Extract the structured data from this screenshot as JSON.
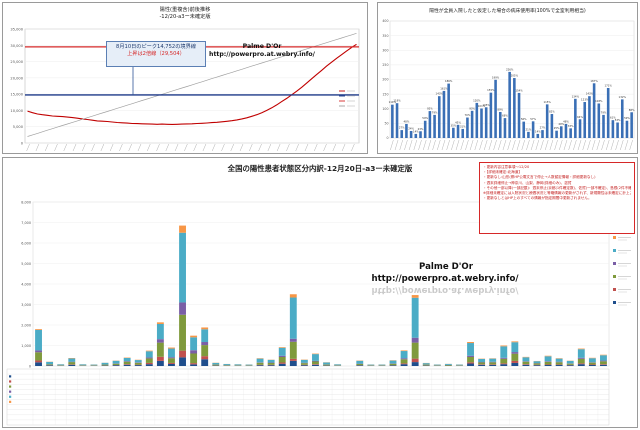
{
  "watermark": {
    "name": "Palme D'Or",
    "url": "http://powerpro.at.webry.info/"
  },
  "panel_a": {
    "title_line1": "陽性(重複含)前後推移",
    "title_line2": "-12/20-a3ー未確定版",
    "annotation_line1": "8月10日のピーク14,752の境界線",
    "annotation_line2": "上昇は2倍線（29,504）"
  },
  "panel_b": {
    "title": "陽性が全員入院したと仮定した場合の病床使用率(100%で全室利用相当)"
  },
  "panel_c": {
    "title": "全国の陽性患者状態区分内訳-12月20日-a3ー未確定版",
    "notes": [
      "・更新内容注意事項～12/20",
      "・【詳細未確定:北海道】",
      "・更新なし:山形(県HP公電文言で停止→人数暫定情報・詳細更新なし)",
      "・週末詳細停止→神奈川、山梨、静岡(詳細のみ)、滋賀",
      "・その他一部以降(一部記載)：週末停止(京都(1件確定数)、佐賀(一部不確定)、島根(2件不確定)",
      "※詳細未確定には入院状況と療養状況と等略情報の更新がされず、新規陽性は未確定に計上されます。",
      "・更新なしとはHP上のすべての情報が指定期間中更新されません。"
    ]
  },
  "chart_data": [
    {
      "type": "line",
      "title": "陽性(重複含)前後推移 -12/20-a3ー未確定版",
      "ylim": [
        0,
        35000
      ],
      "yticks": [
        0,
        5000,
        10000,
        15000,
        20000,
        25000,
        30000,
        35000
      ],
      "reference_lines": [
        {
          "name": "8月10日のピーク14,752の境界線",
          "value": 14752,
          "color": "#1f3b8a"
        },
        {
          "name": "上昇は2倍線（29,504）",
          "value": 29504,
          "color": "#d62828"
        }
      ],
      "series": [
        {
          "name": "",
          "color": "#c00000",
          "values": [
            9800,
            9300,
            8900,
            8700,
            8500,
            8300,
            8200,
            8100,
            7950,
            7800,
            7600,
            7400,
            7200,
            7000,
            6800,
            6700,
            6600,
            6450,
            6300,
            6200,
            6100,
            6000,
            5950,
            5900,
            5850,
            5800,
            5750,
            5800,
            5750,
            5700,
            5750,
            5800,
            5850,
            5900,
            6000,
            6050,
            6150,
            6250,
            6350,
            6500,
            6650,
            6850,
            7100,
            7400,
            7750,
            8200,
            8700,
            9300,
            10000,
            10800,
            11700,
            12700,
            13700,
            14800,
            15900,
            17100,
            18400,
            19700,
            21000,
            22300,
            23600,
            24800,
            26000,
            27100,
            28200,
            29300,
            30300
          ]
        },
        {
          "name": "",
          "color": "#a0a0a0",
          "values": [
            2000,
            2480,
            2960,
            3440,
            3920,
            4400,
            4880,
            5360,
            5840,
            6320,
            6800,
            7280,
            7760,
            8240,
            8720,
            9200,
            9680,
            10160,
            10640,
            11120,
            11600,
            12080,
            12560,
            13040,
            13520,
            14000,
            14480,
            14960,
            15440,
            15920,
            16400,
            16880,
            17360,
            17840,
            18320,
            18800,
            19280,
            19760,
            20240,
            20720,
            21200,
            21680,
            22160,
            22640,
            23120,
            23600,
            24080,
            24560,
            25040,
            25520,
            26000,
            26480,
            26960,
            27440,
            27920,
            28400,
            28880,
            29360,
            29840,
            30320,
            30800,
            31280,
            31760,
            32240,
            32720,
            33200,
            33680
          ]
        }
      ]
    },
    {
      "type": "bar",
      "title": "陽性が全員入院したと仮定した場合の病床使用率(100%で全室利用相当)",
      "ylim": [
        0,
        400
      ],
      "yticks": [
        0,
        50,
        100,
        150,
        200,
        250,
        300,
        350,
        400
      ],
      "color": "#3a6fb5",
      "values": [
        114,
        119,
        27,
        48,
        24,
        14,
        23,
        59,
        92,
        79,
        143,
        161,
        186,
        35,
        45,
        31,
        70,
        93,
        120,
        101,
        105,
        155,
        199,
        89,
        68,
        226,
        205,
        154,
        56,
        21,
        57,
        14,
        27,
        115,
        82,
        25,
        40,
        48,
        33,
        134,
        64,
        123,
        143,
        187,
        118,
        79,
        171,
        61,
        53,
        132,
        59,
        88
      ]
    },
    {
      "type": "bar",
      "stacked": true,
      "title": "全国の陽性患者状態区分内訳-12月20日-a3ー未確定版",
      "ylim": [
        0,
        8000
      ],
      "yticks": [
        0,
        1000,
        2000,
        3000,
        4000,
        5000,
        6000,
        7000,
        8000
      ],
      "series": [
        {
          "color": "#1f4e8c",
          "values": [
            180,
            30,
            10,
            60,
            10,
            10,
            20,
            40,
            60,
            45,
            90,
            250,
            100,
            420,
            80,
            330,
            20,
            10,
            10,
            10,
            40,
            40,
            110,
            250,
            40,
            60,
            20,
            10,
            0,
            30,
            10,
            10,
            30,
            90,
            190,
            20,
            10,
            15,
            10,
            120,
            60,
            55,
            90,
            150,
            60,
            40,
            50,
            55,
            40,
            90,
            50,
            60
          ]
        },
        {
          "color": "#c0504d",
          "values": [
            90,
            10,
            5,
            20,
            5,
            5,
            10,
            10,
            30,
            20,
            60,
            200,
            50,
            330,
            60,
            150,
            10,
            5,
            5,
            5,
            20,
            20,
            60,
            100,
            20,
            30,
            10,
            5,
            0,
            10,
            5,
            5,
            10,
            40,
            170,
            10,
            5,
            5,
            5,
            60,
            25,
            25,
            40,
            100,
            30,
            20,
            25,
            20,
            15,
            40,
            25,
            30
          ]
        },
        {
          "color": "#7f9a3c",
          "values": [
            400,
            40,
            20,
            110,
            20,
            20,
            40,
            60,
            120,
            90,
            220,
            690,
            230,
            1750,
            470,
            540,
            40,
            25,
            20,
            20,
            100,
            90,
            270,
            830,
            80,
            130,
            40,
            20,
            0,
            60,
            20,
            20,
            70,
            200,
            780,
            40,
            20,
            30,
            20,
            260,
            90,
            100,
            220,
            350,
            120,
            70,
            130,
            110,
            60,
            220,
            90,
            140
          ]
        },
        {
          "color": "#7a5fa6",
          "values": [
            90,
            10,
            5,
            20,
            5,
            5,
            5,
            15,
            30,
            25,
            50,
            170,
            50,
            600,
            160,
            150,
            10,
            5,
            5,
            5,
            20,
            20,
            60,
            150,
            20,
            30,
            10,
            5,
            0,
            15,
            5,
            5,
            15,
            50,
            240,
            10,
            5,
            5,
            5,
            60,
            20,
            25,
            50,
            80,
            25,
            15,
            30,
            25,
            15,
            50,
            20,
            35
          ]
        },
        {
          "color": "#4bacc6",
          "values": [
            1000,
            110,
            40,
            160,
            40,
            30,
            80,
            130,
            150,
            110,
            300,
            740,
            420,
            3400,
            630,
            620,
            70,
            50,
            40,
            30,
            180,
            130,
            390,
            2010,
            140,
            330,
            90,
            40,
            0,
            140,
            30,
            30,
            140,
            350,
            1950,
            60,
            30,
            45,
            30,
            620,
            150,
            155,
            560,
            480,
            190,
            90,
            240,
            150,
            120,
            420,
            195,
            260
          ]
        },
        {
          "color": "#f79646",
          "values": [
            40,
            10,
            5,
            20,
            5,
            5,
            5,
            10,
            20,
            15,
            30,
            80,
            50,
            350,
            80,
            90,
            10,
            5,
            5,
            5,
            20,
            10,
            30,
            160,
            15,
            25,
            10,
            5,
            0,
            15,
            5,
            5,
            15,
            30,
            130,
            10,
            5,
            5,
            5,
            50,
            15,
            15,
            40,
            40,
            20,
            10,
            25,
            20,
            10,
            30,
            20,
            25
          ]
        }
      ]
    }
  ]
}
